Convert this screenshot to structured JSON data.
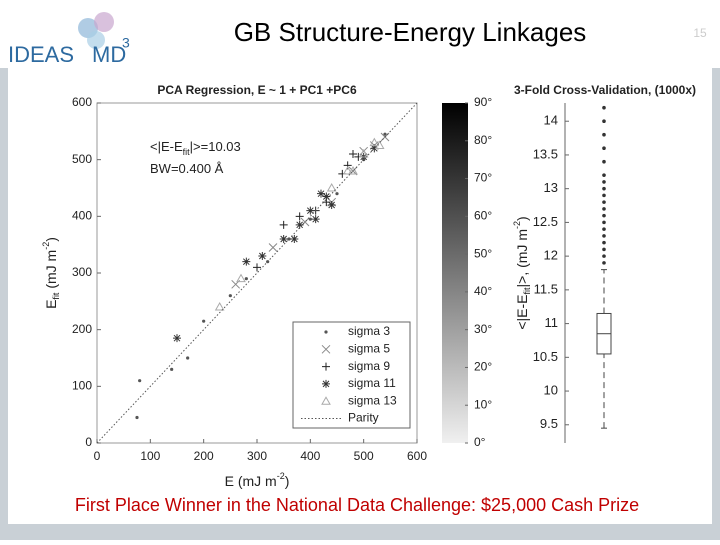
{
  "slide": {
    "title": "GB Structure-Energy Linkages",
    "logo": "IDEAS",
    "logo_md": "MD",
    "logo_sup": "3",
    "page": "15",
    "footer": "First Place Winner in the National Data Challenge: $25,000 Cash Prize"
  },
  "chart_data": [
    {
      "type": "scatter",
      "title": "PCA Regression, E ~ 1 + PC1 +PC6",
      "xlabel": [
        {
          "text": "E (mJ m"
        },
        {
          "text": "-2",
          "sup": true
        },
        {
          "text": ")"
        }
      ],
      "ylabel": [
        {
          "text": "E"
        },
        {
          "text": "fit",
          "sub": true
        },
        {
          "text": " (mJ m"
        },
        {
          "text": "-2",
          "sup": true
        },
        {
          "text": ")"
        }
      ],
      "annotations": [
        [
          {
            "text": "<|E-E"
          },
          {
            "text": "fit",
            "sub": true
          },
          {
            "text": "|>=10.03"
          }
        ],
        [
          {
            "text": "BW=0.400 Å"
          }
        ]
      ],
      "xlim": [
        0,
        600
      ],
      "ylim": [
        0,
        600
      ],
      "xticks": [
        0,
        100,
        200,
        300,
        400,
        500,
        600
      ],
      "yticks": [
        0,
        100,
        200,
        300,
        400,
        500,
        600
      ],
      "series": [
        {
          "name": "sigma 3",
          "marker": "dot",
          "color": "#555555",
          "x": [
            75,
            80,
            140,
            170,
            200,
            250,
            280,
            320,
            360,
            400,
            450,
            500,
            540
          ],
          "values": [
            45,
            110,
            130,
            150,
            215,
            260,
            290,
            320,
            360,
            395,
            440,
            500,
            545
          ]
        },
        {
          "name": "sigma 5",
          "marker": "x",
          "color": "#888888",
          "x": [
            260,
            330,
            390,
            440,
            480,
            500,
            520,
            540
          ],
          "values": [
            280,
            345,
            390,
            425,
            480,
            515,
            525,
            540
          ]
        },
        {
          "name": "sigma 9",
          "marker": "plus",
          "color": "#222222",
          "x": [
            300,
            350,
            380,
            410,
            430,
            460,
            470,
            480,
            490
          ],
          "values": [
            310,
            385,
            400,
            410,
            425,
            475,
            490,
            510,
            505
          ]
        },
        {
          "name": "sigma 11",
          "marker": "star",
          "color": "#333333",
          "x": [
            150,
            280,
            310,
            350,
            370,
            380,
            400,
            410,
            430,
            440,
            420,
            500,
            520
          ],
          "values": [
            185,
            320,
            330,
            360,
            360,
            385,
            410,
            395,
            435,
            420,
            440,
            505,
            520
          ]
        },
        {
          "name": "sigma 13",
          "marker": "triangle",
          "color": "#aaaaaa",
          "x": [
            230,
            270,
            440,
            470,
            480,
            500,
            520,
            530
          ],
          "values": [
            240,
            290,
            450,
            480,
            480,
            510,
            530,
            525
          ]
        },
        {
          "name": "Parity",
          "marker": "line",
          "color": "#555555",
          "x": [
            0,
            600
          ],
          "values": [
            0,
            600
          ]
        }
      ]
    },
    {
      "type": "colorbar",
      "ylim": [
        0,
        90
      ],
      "yticks": [
        {
          "value": 0,
          "label": "0°"
        },
        {
          "value": 10,
          "label": "10°"
        },
        {
          "value": 20,
          "label": "20°"
        },
        {
          "value": 30,
          "label": "30°"
        },
        {
          "value": 40,
          "label": "40°"
        },
        {
          "value": 50,
          "label": "50°"
        },
        {
          "value": 60,
          "label": "60°"
        },
        {
          "value": 70,
          "label": "70°"
        },
        {
          "value": 80,
          "label": "80°"
        },
        {
          "value": 90,
          "label": "90°"
        }
      ]
    },
    {
      "type": "box",
      "title": "3-Fold Cross-Validation, (1000x)",
      "ylabel": [
        {
          "text": "<|E-E"
        },
        {
          "text": "fit",
          "sub": true
        },
        {
          "text": "|>, (mJ m"
        },
        {
          "text": "-2",
          "sup": true
        },
        {
          "text": ")"
        }
      ],
      "ylim": [
        9.23,
        14.27
      ],
      "yticks": [
        9.5,
        10,
        10.5,
        11,
        11.5,
        12,
        12.5,
        13,
        13.5,
        14
      ],
      "whislo": 9.45,
      "q1": 10.55,
      "median": 10.85,
      "q3": 11.15,
      "whishi": 11.8,
      "outliers": [
        11.9,
        12.0,
        12.1,
        12.2,
        12.3,
        12.4,
        12.5,
        12.6,
        12.7,
        12.8,
        12.9,
        13.0,
        13.1,
        13.2,
        13.4,
        13.6,
        13.8,
        14.0,
        14.2
      ]
    }
  ]
}
